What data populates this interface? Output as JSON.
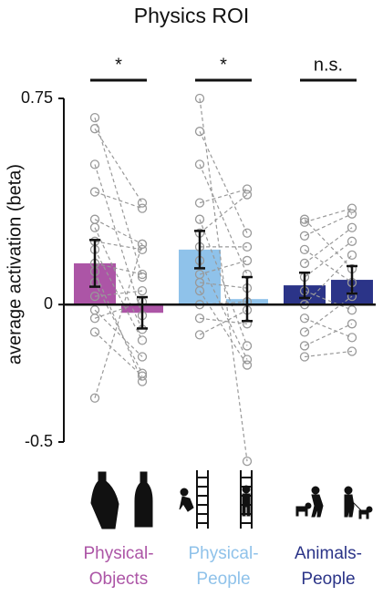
{
  "chart_data": {
    "type": "bar",
    "title": "Physics ROI",
    "ylabel": "average activation (beta)",
    "ylim": [
      -0.5,
      0.75
    ],
    "yticks": [
      -0.5,
      0,
      0.75
    ],
    "groups": [
      {
        "label": [
          "Physical-",
          "Objects"
        ],
        "color": "#ac55a6",
        "significance": "*",
        "bars": [
          {
            "value": 0.15,
            "error": 0.085,
            "points": [
              0.68,
              0.64,
              0.51,
              0.41,
              0.31,
              0.28,
              0.23,
              0.15,
              0.08,
              0.03,
              -0.02,
              -0.05,
              -0.1,
              0.2,
              0.12,
              -0.34
            ]
          },
          {
            "value": -0.03,
            "error": 0.057,
            "points": [
              0.1,
              0.37,
              -0.04,
              0.35,
              0.22,
              -0.09,
              0.2,
              0.11,
              -0.25,
              0.05,
              -0.19,
              0.01,
              -0.26,
              -0.13,
              -0.28,
              0.22
            ]
          }
        ]
      },
      {
        "label": [
          "Physical-",
          "People"
        ],
        "color": "#8fc2ea",
        "significance": "*",
        "bars": [
          {
            "value": 0.2,
            "error": 0.068,
            "points": [
              0.75,
              0.63,
              0.51,
              0.37,
              0.31,
              0.26,
              0.21,
              0.16,
              0.11,
              0.08,
              0.05,
              0,
              -0.05,
              -0.11
            ]
          },
          {
            "value": 0.02,
            "error": 0.08,
            "points": [
              -0.57,
              0.26,
              0.11,
              0.42,
              -0.15,
              0.4,
              0.21,
              -0.2,
              0.16,
              0.06,
              -0.22,
              0.01,
              -0.07,
              -0.02
            ]
          }
        ]
      },
      {
        "label": [
          "Animals-",
          "People"
        ],
        "color": "#2b3488",
        "significance": "n.s.",
        "bars": [
          {
            "value": 0.07,
            "error": 0.046,
            "points": [
              0.31,
              0.3,
              0.25,
              0.2,
              0.15,
              0.1,
              0.05,
              0,
              -0.05,
              -0.1,
              -0.15,
              -0.19
            ]
          },
          {
            "value": 0.09,
            "error": 0.05,
            "points": [
              0.13,
              0.35,
              0.33,
              0.08,
              0.28,
              0.23,
              -0.02,
              0.18,
              -0.12,
              0.03,
              -0.07,
              -0.17
            ]
          }
        ]
      }
    ]
  }
}
